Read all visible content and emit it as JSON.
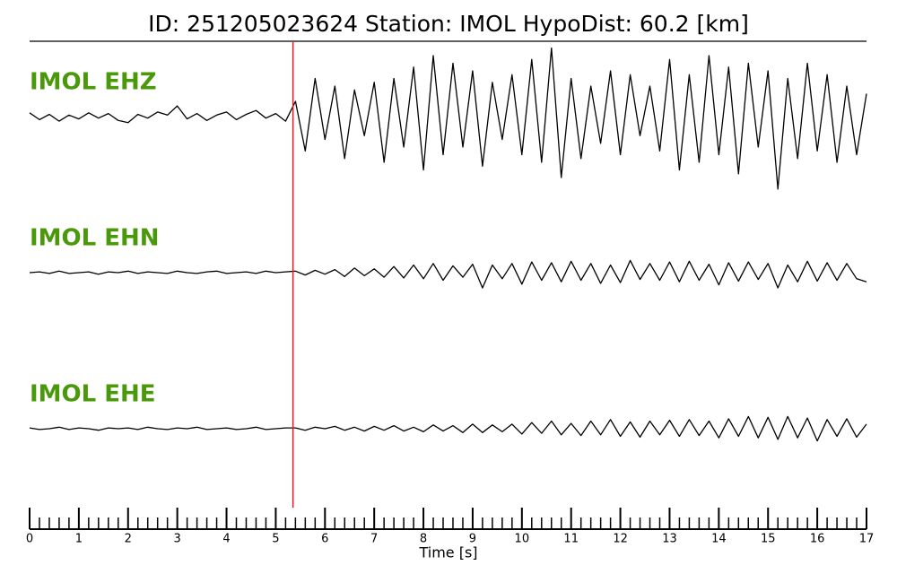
{
  "chart_data": {
    "type": "line",
    "title": "ID: 251205023624   Station: IMOL   HypoDist:    60.2 [km]",
    "xlabel": "Time [s]",
    "xlim": [
      0,
      17
    ],
    "xticks": [
      0,
      1,
      2,
      3,
      4,
      5,
      6,
      7,
      8,
      9,
      10,
      11,
      12,
      13,
      14,
      15,
      16,
      17
    ],
    "ylim": [
      -1,
      1
    ],
    "pick_time": 5.35,
    "pick_color": "#e8191a",
    "label_color": "#4a990a",
    "x": [
      0,
      0.2,
      0.4,
      0.6,
      0.8,
      1,
      1.2,
      1.4,
      1.6,
      1.8,
      2,
      2.2,
      2.4,
      2.6,
      2.8,
      3,
      3.2,
      3.4,
      3.6,
      3.8,
      4,
      4.2,
      4.4,
      4.6,
      4.8,
      5,
      5.2,
      5.4,
      5.6,
      5.8,
      6,
      6.2,
      6.4,
      6.6,
      6.8,
      7,
      7.2,
      7.4,
      7.6,
      7.8,
      8,
      8.2,
      8.4,
      8.6,
      8.8,
      9,
      9.2,
      9.4,
      9.6,
      9.8,
      10,
      10.2,
      10.4,
      10.6,
      10.8,
      11,
      11.2,
      11.4,
      11.6,
      11.8,
      12,
      12.2,
      12.4,
      12.6,
      12.8,
      13,
      13.2,
      13.4,
      13.6,
      13.8,
      14,
      14.2,
      14.4,
      14.6,
      14.8,
      15,
      15.2,
      15.4,
      15.6,
      15.8,
      16,
      16.2,
      16.4,
      16.6,
      16.8,
      17
    ],
    "series": [
      {
        "name": "IMOL EHZ",
        "color": "#000000",
        "values": [
          0.05,
          -0.04,
          0.03,
          -0.06,
          0.02,
          -0.03,
          0.05,
          -0.02,
          0.04,
          -0.05,
          -0.08,
          0.03,
          -0.02,
          0.06,
          0.02,
          0.14,
          -0.03,
          0.04,
          -0.05,
          0.02,
          0.06,
          -0.04,
          0.03,
          0.08,
          -0.02,
          0.04,
          -0.06,
          0.2,
          -0.45,
          0.5,
          -0.3,
          0.4,
          -0.55,
          0.35,
          -0.25,
          0.45,
          -0.6,
          0.5,
          -0.4,
          0.65,
          -0.7,
          0.8,
          -0.5,
          0.7,
          -0.4,
          0.6,
          -0.65,
          0.45,
          -0.3,
          0.55,
          -0.5,
          0.75,
          -0.6,
          0.9,
          -0.8,
          0.5,
          -0.55,
          0.4,
          -0.35,
          0.6,
          -0.5,
          0.55,
          -0.25,
          0.4,
          -0.45,
          0.75,
          -0.7,
          0.55,
          -0.6,
          0.8,
          -0.5,
          0.65,
          -0.75,
          0.7,
          -0.4,
          0.6,
          -0.95,
          0.5,
          -0.55,
          0.7,
          -0.45,
          0.55,
          -0.6,
          0.4,
          -0.5,
          0.3
        ]
      },
      {
        "name": "IMOL EHN",
        "color": "#000000",
        "values": [
          0.0,
          0.01,
          -0.01,
          0.02,
          -0.01,
          0.0,
          0.01,
          -0.02,
          0.01,
          0.0,
          0.02,
          -0.01,
          0.01,
          0.0,
          -0.01,
          0.02,
          0.0,
          -0.01,
          0.01,
          0.02,
          -0.01,
          0.0,
          0.01,
          -0.01,
          0.02,
          0.0,
          0.01,
          0.02,
          -0.03,
          0.03,
          -0.02,
          0.04,
          -0.05,
          0.06,
          -0.04,
          0.05,
          -0.06,
          0.08,
          -0.07,
          0.1,
          -0.08,
          0.12,
          -0.1,
          0.09,
          -0.06,
          0.11,
          -0.2,
          0.1,
          -0.08,
          0.12,
          -0.15,
          0.14,
          -0.1,
          0.13,
          -0.12,
          0.15,
          -0.1,
          0.12,
          -0.14,
          0.1,
          -0.13,
          0.16,
          -0.09,
          0.12,
          -0.1,
          0.14,
          -0.12,
          0.15,
          -0.1,
          0.11,
          -0.16,
          0.13,
          -0.11,
          0.14,
          -0.09,
          0.12,
          -0.2,
          0.1,
          -0.12,
          0.15,
          -0.11,
          0.13,
          -0.1,
          0.12,
          -0.08,
          -0.12
        ]
      },
      {
        "name": "IMOL EHE",
        "color": "#000000",
        "values": [
          0.01,
          -0.01,
          0.0,
          0.02,
          -0.01,
          0.01,
          0.0,
          -0.02,
          0.01,
          0.0,
          0.01,
          -0.01,
          0.02,
          0.0,
          -0.01,
          0.01,
          0.0,
          0.02,
          -0.01,
          0.0,
          0.01,
          -0.01,
          0.0,
          0.02,
          -0.01,
          0.0,
          0.01,
          0.01,
          -0.02,
          0.02,
          0.0,
          0.03,
          -0.02,
          0.02,
          -0.03,
          0.03,
          -0.02,
          0.04,
          -0.03,
          0.02,
          -0.04,
          0.05,
          -0.03,
          0.04,
          -0.05,
          0.06,
          -0.05,
          0.05,
          -0.04,
          0.06,
          -0.07,
          0.08,
          -0.06,
          0.1,
          -0.08,
          0.07,
          -0.09,
          0.1,
          -0.08,
          0.12,
          -0.1,
          0.09,
          -0.11,
          0.1,
          -0.08,
          0.11,
          -0.1,
          0.12,
          -0.09,
          0.1,
          -0.12,
          0.13,
          -0.1,
          0.16,
          -0.12,
          0.15,
          -0.14,
          0.16,
          -0.12,
          0.14,
          -0.16,
          0.12,
          -0.1,
          0.13,
          -0.11,
          0.06
        ]
      }
    ]
  }
}
